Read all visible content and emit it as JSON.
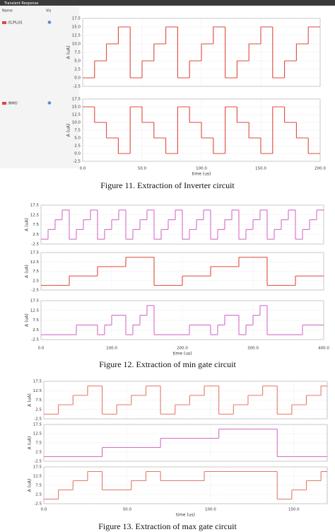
{
  "figures": [
    {
      "header": "Transient Response",
      "legend_header": [
        "Name",
        "Vis"
      ],
      "caption": "Figure 11. Extraction of Inverter circuit",
      "xlabel": "time (us)",
      "xlim": [
        0,
        200
      ],
      "xticks": [
        {
          "value": 0,
          "label": "0.0"
        },
        {
          "value": 50,
          "label": "50.0"
        },
        {
          "value": 100,
          "label": "100.0"
        },
        {
          "value": 150,
          "label": "150.0"
        },
        {
          "value": 200,
          "label": "200.0"
        }
      ],
      "panels": [
        {
          "type": "line",
          "step": "post",
          "name": "/I1/PLUS",
          "color": "#e0473b",
          "ylabel": "A (uA)",
          "ylim": [
            -2.5,
            17.5
          ],
          "yticks": [
            {
              "value": 17.5,
              "label": "17.5"
            },
            {
              "value": 15,
              "label": "15.0"
            },
            {
              "value": 12.5,
              "label": "12.5"
            },
            {
              "value": 10,
              "label": "10.0"
            },
            {
              "value": 7.5,
              "label": "7.5"
            },
            {
              "value": 5,
              "label": "5.0"
            },
            {
              "value": 2.5,
              "label": "2.5"
            },
            {
              "value": 0,
              "label": "0.0"
            },
            {
              "value": -2.5,
              "label": "-2.5"
            }
          ],
          "x": [
            0,
            10,
            20,
            30,
            40,
            50,
            60,
            70,
            80,
            90,
            100,
            110,
            120,
            130,
            140,
            150,
            160,
            170,
            180,
            190
          ],
          "values": [
            0,
            5,
            10,
            15,
            0,
            5,
            10,
            15,
            0,
            5,
            10,
            15,
            0,
            5,
            10,
            15,
            0,
            5,
            10,
            15
          ]
        },
        {
          "type": "line",
          "step": "post",
          "name": "/NMO",
          "color": "#e0473b",
          "ylabel": "A (uA)",
          "ylim": [
            -2.5,
            17.5
          ],
          "yticks": [
            {
              "value": 17.5,
              "label": "17.5"
            },
            {
              "value": 15,
              "label": "15.0"
            },
            {
              "value": 12.5,
              "label": "12.5"
            },
            {
              "value": 10,
              "label": "10.0"
            },
            {
              "value": 7.5,
              "label": "7.5"
            },
            {
              "value": 5,
              "label": "5.0"
            },
            {
              "value": 2.5,
              "label": "2.5"
            },
            {
              "value": 0,
              "label": "0.0"
            },
            {
              "value": -2.5,
              "label": "-2.5"
            }
          ],
          "x": [
            0,
            10,
            20,
            30,
            40,
            50,
            60,
            70,
            80,
            90,
            100,
            110,
            120,
            130,
            140,
            150,
            160,
            170,
            180,
            190
          ],
          "values": [
            15,
            10,
            5,
            0,
            15,
            10,
            5,
            0,
            15,
            10,
            5,
            0,
            15,
            10,
            5,
            0,
            15,
            10,
            5,
            0
          ]
        }
      ]
    },
    {
      "caption": "Figure 12. Extraction of min gate circuit",
      "xlabel": "time (us)",
      "xlim": [
        0,
        400
      ],
      "xticks": [
        {
          "value": 0,
          "label": "0.0"
        },
        {
          "value": 100,
          "label": "100.0"
        },
        {
          "value": 200,
          "label": "200.0"
        },
        {
          "value": 300,
          "label": "300.0"
        },
        {
          "value": 400,
          "label": "400.0"
        }
      ],
      "panels": [
        {
          "type": "line",
          "step": "post",
          "color": "#d46bc6",
          "ylabel": "A (uA)",
          "ylim": [
            -2.5,
            17.5
          ],
          "yticks": [
            17.5,
            12.5,
            7.5,
            2.5,
            -2.5
          ],
          "x": [
            0,
            10,
            20,
            30,
            40,
            50,
            60,
            70,
            80,
            90,
            100,
            110,
            120,
            130,
            140,
            150,
            160,
            170,
            180,
            190,
            200,
            210,
            220,
            230,
            240,
            250,
            260,
            270,
            280,
            290,
            300,
            310,
            320,
            330,
            340,
            350,
            360,
            370,
            380,
            390
          ],
          "values": [
            0,
            5,
            10,
            15,
            0,
            5,
            10,
            15,
            0,
            5,
            10,
            15,
            0,
            5,
            10,
            15,
            0,
            5,
            10,
            15,
            0,
            5,
            10,
            15,
            0,
            5,
            10,
            15,
            0,
            5,
            10,
            15,
            0,
            5,
            10,
            15,
            0,
            5,
            10,
            15
          ]
        },
        {
          "type": "line",
          "step": "post",
          "color": "#e0473b",
          "ylabel": "A (uA)",
          "ylim": [
            -2.5,
            17.5
          ],
          "yticks": [
            17.5,
            12.5,
            7.5,
            2.5,
            -2.5
          ],
          "x": [
            0,
            40,
            80,
            120,
            160,
            200,
            240,
            280,
            320,
            360
          ],
          "values": [
            0,
            5,
            10,
            15,
            0,
            5,
            10,
            15,
            0,
            5
          ]
        },
        {
          "type": "line",
          "step": "post",
          "color": "#d46bc6",
          "ylabel": "A (uA)",
          "ylim": [
            -2.5,
            17.5
          ],
          "yticks": [
            17.5,
            12.5,
            7.5,
            2.5,
            -2.5
          ],
          "x": [
            0,
            10,
            20,
            30,
            40,
            50,
            60,
            70,
            80,
            90,
            100,
            110,
            120,
            130,
            140,
            150,
            160,
            170,
            180,
            190,
            200,
            210,
            220,
            230,
            240,
            250,
            260,
            270,
            280,
            290,
            300,
            310,
            320,
            330,
            340,
            350,
            360,
            370,
            380,
            390
          ],
          "values": [
            0,
            0,
            0,
            0,
            0,
            5,
            5,
            5,
            0,
            5,
            10,
            10,
            0,
            5,
            10,
            15,
            0,
            0,
            0,
            0,
            0,
            5,
            5,
            5,
            0,
            5,
            10,
            10,
            0,
            5,
            10,
            15,
            0,
            0,
            0,
            0,
            0,
            5,
            5,
            5
          ]
        }
      ]
    },
    {
      "caption": "Figure 13. Extraction of max gate circuit",
      "xlabel": "time (us)",
      "xlim": [
        0,
        170
      ],
      "xticks": [
        {
          "value": 0,
          "label": "0.0"
        },
        {
          "value": 50,
          "label": "50.0"
        },
        {
          "value": 100,
          "label": "100.0"
        },
        {
          "value": 150,
          "label": "150.0"
        }
      ],
      "panels": [
        {
          "type": "line",
          "step": "post",
          "color": "#e07a6a",
          "ylabel": "A (uA)",
          "ylim": [
            -2.5,
            17.5
          ],
          "yticks": [
            17.5,
            12.5,
            7.5,
            2.5,
            -2.5
          ],
          "x": [
            0,
            8.75,
            17.5,
            26.25,
            35,
            43.75,
            52.5,
            61.25,
            70,
            78.75,
            87.5,
            96.25,
            105,
            113.75,
            122.5,
            131.25,
            140,
            148.75,
            157.5,
            166.25
          ],
          "values": [
            0,
            5,
            10,
            15,
            0,
            5,
            10,
            15,
            0,
            5,
            10,
            15,
            0,
            5,
            10,
            15,
            0,
            5,
            10,
            15
          ]
        },
        {
          "type": "line",
          "step": "post",
          "color": "#d46bc6",
          "ylabel": "A (uA)",
          "ylim": [
            -2.5,
            17.5
          ],
          "yticks": [
            17.5,
            12.5,
            7.5,
            2.5,
            -2.5
          ],
          "x": [
            0,
            35,
            70,
            105,
            140
          ],
          "values": [
            0,
            5,
            10,
            15,
            0
          ]
        },
        {
          "type": "line",
          "step": "post",
          "color": "#e07a6a",
          "ylabel": "A (uA)",
          "ylim": [
            -2.5,
            17.5
          ],
          "yticks": [
            17.5,
            12.5,
            7.5,
            2.5,
            -2.5
          ],
          "x": [
            0,
            8.75,
            17.5,
            26.25,
            35,
            43.75,
            52.5,
            61.25,
            70,
            78.75,
            87.5,
            96.25,
            105,
            113.75,
            122.5,
            131.25,
            140,
            148.75,
            157.5,
            166.25
          ],
          "values": [
            0,
            5,
            10,
            15,
            5,
            5,
            10,
            15,
            10,
            10,
            10,
            15,
            15,
            15,
            15,
            15,
            0,
            5,
            10,
            15
          ]
        }
      ]
    }
  ]
}
